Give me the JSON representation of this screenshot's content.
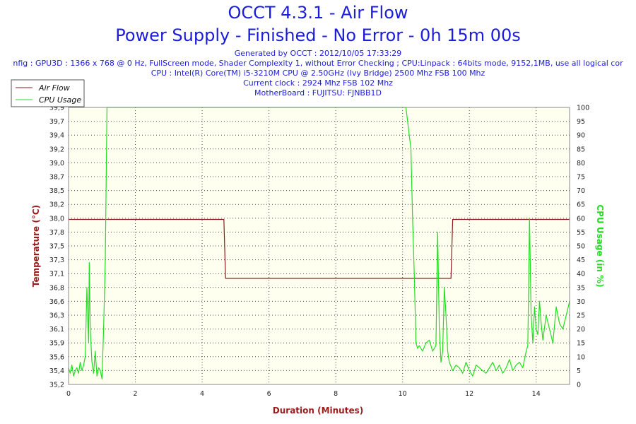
{
  "header": {
    "title": "OCCT 4.3.1 - Air Flow",
    "subtitle": "Power Supply - Finished - No Error - 0h 15m 00s",
    "info_lines": [
      "Generated by OCCT : 2012/10/05 17:33:29",
      "nfig : GPU3D : 1366 x 768 @ 0 Hz, FullScreen mode, Shader Complexity 1, without Error Checking ; CPU:Linpack : 64bits mode, 9152,1MB, use all logical cor",
      "CPU : Intel(R) Core(TM) i5-3210M CPU @ 2.50GHz (Ivy Bridge) 2500 Mhz FSB 100 Mhz",
      "Current clock : 2924 Mhz FSB 102 Mhz",
      "MotherBoard : FUJITSU: FJNBB1D"
    ]
  },
  "colors": {
    "title": "#1c1cdc",
    "airflow": "#8b1a1a",
    "cpu": "#22dd22",
    "plot_bg": "#fffff0",
    "xlabel": "#9b1b1b",
    "ylabel_left": "#9b1b1b",
    "ylabel_right": "#22dd22"
  },
  "chart_data": {
    "type": "line",
    "title": "OCCT 4.3.1 - Air Flow",
    "xlabel": "Duration (Minutes)",
    "ylabel": "Temperature (°C)",
    "y2label": "CPU Usage (in %)",
    "xlim": [
      0,
      15
    ],
    "ylim": [
      35.2,
      39.9
    ],
    "y2lim": [
      0,
      100
    ],
    "x_ticks": [
      "0",
      "2",
      "4",
      "6",
      "8",
      "10",
      "12",
      "14"
    ],
    "y_ticks": [
      "35,2",
      "35,4",
      "35,6",
      "35,9",
      "36,1",
      "36,3",
      "36,6",
      "36,8",
      "37,1",
      "37,3",
      "37,5",
      "37,8",
      "38,0",
      "38,2",
      "38,5",
      "38,7",
      "39,0",
      "39,2",
      "39,4",
      "39,7",
      "39,9"
    ],
    "y2_ticks": [
      "0",
      "5",
      "10",
      "15",
      "20",
      "25",
      "30",
      "35",
      "40",
      "45",
      "50",
      "55",
      "60",
      "65",
      "70",
      "75",
      "80",
      "85",
      "90",
      "95",
      "100"
    ],
    "grid": true,
    "legend": {
      "position": "top-left",
      "entries": [
        "Air Flow",
        "CPU Usage"
      ]
    },
    "series": [
      {
        "name": "Air Flow",
        "axis": "left",
        "x": [
          0,
          4.6,
          4.65,
          4.7,
          11.45,
          11.5,
          15
        ],
        "y": [
          38.0,
          38.0,
          38.0,
          37.0,
          37.0,
          38.0,
          38.0
        ]
      },
      {
        "name": "CPU Usage",
        "axis": "right",
        "x": [
          0,
          0.05,
          0.1,
          0.15,
          0.2,
          0.25,
          0.3,
          0.35,
          0.4,
          0.45,
          0.5,
          0.55,
          0.6,
          0.62,
          0.65,
          0.7,
          0.75,
          0.8,
          0.85,
          0.9,
          0.95,
          1.0,
          1.05,
          1.1,
          1.15,
          1.2,
          1.3,
          1.5,
          2.0,
          3.0,
          4.0,
          5.0,
          6.0,
          7.0,
          8.0,
          9.0,
          9.8,
          10.0,
          10.05,
          10.1,
          10.15,
          10.2,
          10.25,
          10.3,
          10.35,
          10.4,
          10.45,
          10.5,
          10.6,
          10.7,
          10.8,
          10.9,
          11.0,
          11.05,
          11.1,
          11.15,
          11.2,
          11.25,
          11.3,
          11.35,
          11.4,
          11.5,
          11.6,
          11.7,
          11.8,
          11.9,
          12.0,
          12.1,
          12.2,
          12.3,
          12.4,
          12.5,
          12.6,
          12.7,
          12.8,
          12.9,
          13.0,
          13.1,
          13.2,
          13.3,
          13.4,
          13.5,
          13.6,
          13.7,
          13.75,
          13.8,
          13.85,
          13.9,
          13.95,
          14.0,
          14.05,
          14.1,
          14.15,
          14.2,
          14.3,
          14.4,
          14.5,
          14.6,
          14.7,
          14.8,
          14.9,
          15.0
        ],
        "y": [
          6,
          4,
          7,
          3,
          5,
          6,
          4,
          8,
          5,
          7,
          10,
          35,
          15,
          44,
          20,
          8,
          4,
          12,
          3,
          6,
          5,
          2,
          20,
          45,
          100,
          100,
          100,
          100,
          100,
          100,
          100,
          100,
          100,
          100,
          100,
          100,
          100,
          100,
          100,
          100,
          95,
          90,
          85,
          60,
          40,
          15,
          13,
          14,
          12,
          15,
          16,
          12,
          14,
          55,
          20,
          8,
          12,
          35,
          25,
          12,
          8,
          5,
          7,
          6,
          4,
          8,
          5,
          3,
          7,
          6,
          5,
          4,
          6,
          8,
          5,
          7,
          4,
          6,
          9,
          5,
          7,
          8,
          6,
          12,
          14,
          60,
          25,
          15,
          28,
          20,
          18,
          30,
          22,
          16,
          25,
          20,
          15,
          28,
          22,
          20,
          25,
          30
        ]
      }
    ]
  }
}
